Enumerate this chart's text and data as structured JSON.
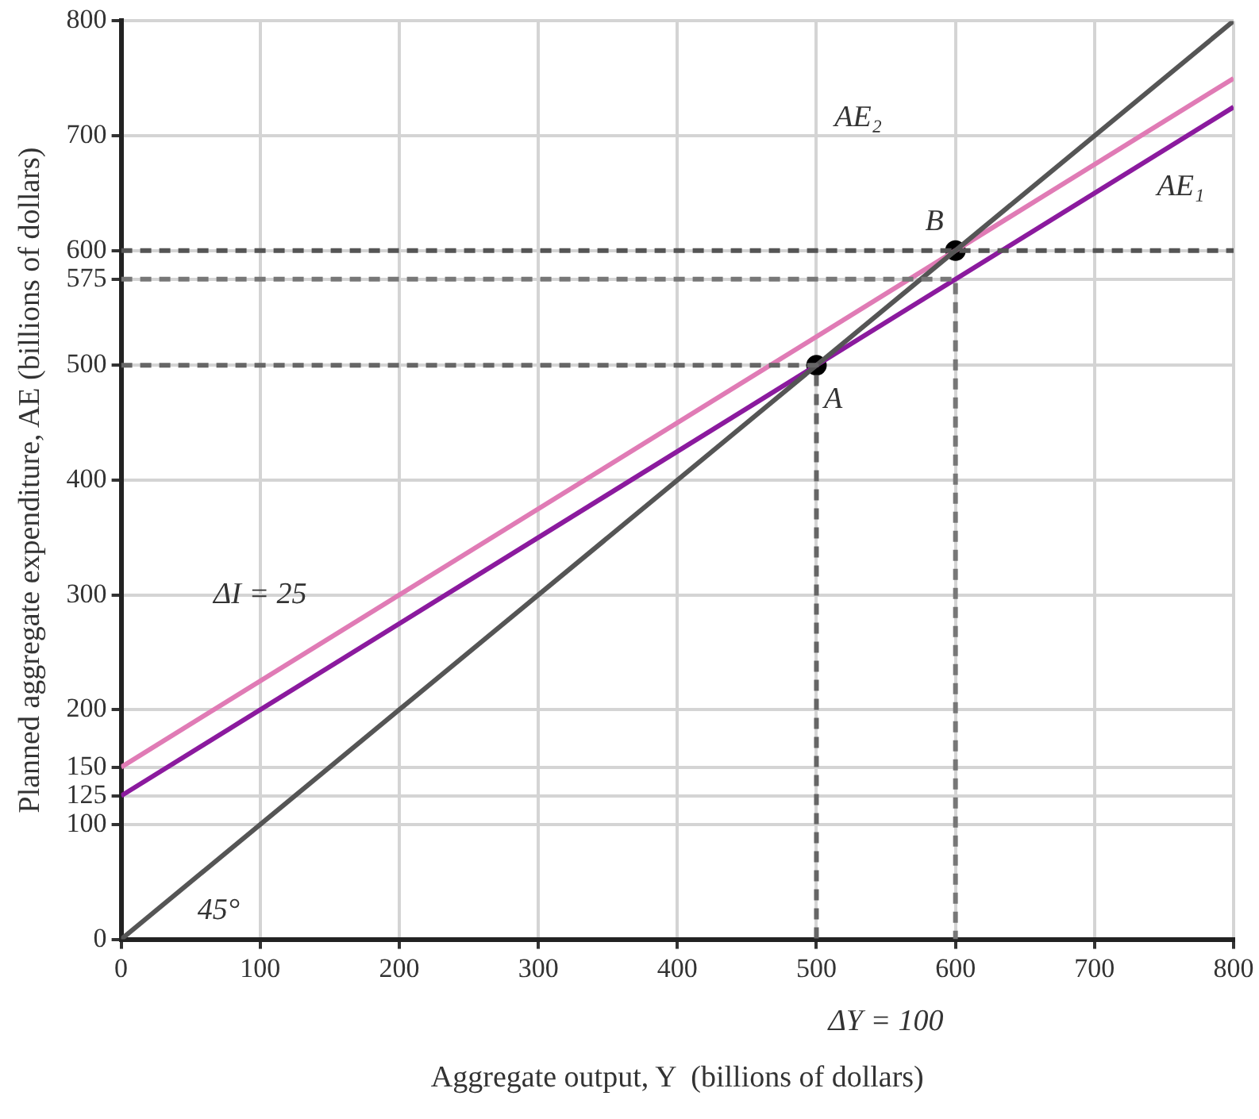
{
  "chart_data": {
    "type": "line",
    "xlabel": "Aggregate output, Y  (billions of dollars)",
    "ylabel": "Planned aggregate expenditure, AE (billions of dollars)",
    "xlim": [
      0,
      800
    ],
    "ylim": [
      0,
      800
    ],
    "xticks": [
      0,
      100,
      200,
      300,
      400,
      500,
      600,
      700,
      800
    ],
    "yticks": [
      0,
      100,
      125,
      150,
      200,
      300,
      400,
      500,
      575,
      600,
      700,
      800
    ],
    "grid": true,
    "legend": false,
    "series": [
      {
        "x": [
          0,
          500,
          500
        ],
        "values": [
          500,
          500,
          0
        ],
        "color": "#666666",
        "line_style": "dashed"
      },
      {
        "x": [
          0,
          600,
          600
        ],
        "values": [
          575,
          575,
          0
        ],
        "color": "#777777",
        "line_style": "dashed"
      },
      {
        "x": [
          0,
          800
        ],
        "values": [
          600,
          600
        ],
        "color": "#555555",
        "line_style": "dashed"
      },
      {
        "x": [
          0,
          800
        ],
        "values": [
          0,
          800
        ],
        "color": "#555555",
        "line_style": "solid"
      },
      {
        "x": [
          0,
          800
        ],
        "values": [
          150,
          750
        ],
        "color": "#e07bb5",
        "line_style": "solid"
      },
      {
        "x": [
          0,
          800
        ],
        "values": [
          125,
          725
        ],
        "color": "#8b1a9e",
        "line_style": "solid"
      },
      {
        "type": "scatter",
        "x": [
          500,
          600
        ],
        "values": [
          500,
          600
        ],
        "color": "#000000",
        "marker": "circle"
      }
    ],
    "annotations": [
      "A",
      "B",
      "AE₂",
      "AE₁",
      "ΔI = 25",
      "45°",
      "ΔY = 100"
    ]
  }
}
